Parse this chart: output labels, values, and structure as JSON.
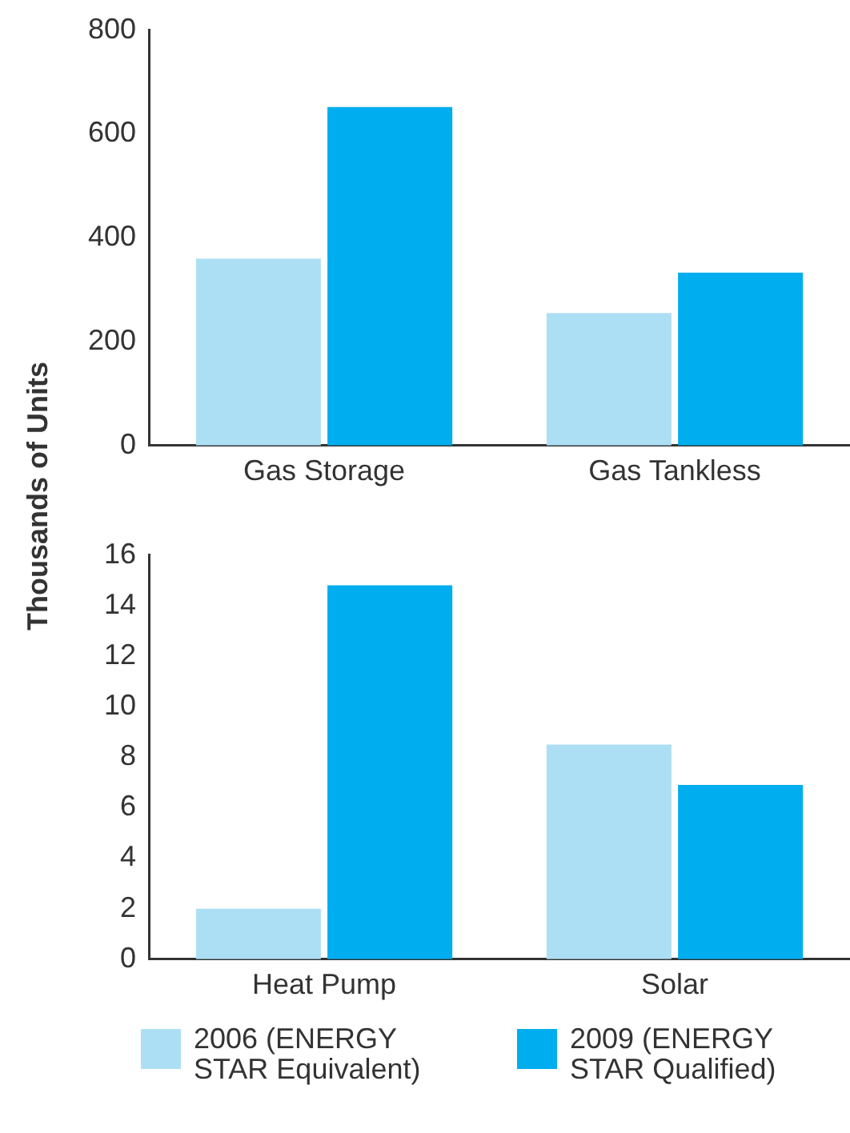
{
  "chart_data": [
    {
      "type": "bar",
      "ylabel": "Thousands of Units",
      "categories": [
        "Gas Storage",
        "Gas Tankless"
      ],
      "ylim": [
        0,
        800
      ],
      "yticks": [
        0,
        200,
        400,
        600,
        800
      ],
      "grid": false,
      "legend": false,
      "series": [
        {
          "color": "#addff4",
          "values": [
            360,
            255
          ]
        },
        {
          "color": "#00adee",
          "values": [
            652,
            333
          ]
        }
      ]
    },
    {
      "type": "bar",
      "categories": [
        "Heat Pump",
        "Solar"
      ],
      "ylim": [
        0,
        16
      ],
      "yticks": [
        0,
        2,
        4,
        6,
        8,
        10,
        12,
        14,
        16
      ],
      "grid": false,
      "legend": "bottom",
      "series": [
        {
          "name": "2006 (ENERGY STAR Equivalent)",
          "color": "#addff4",
          "values": [
            2.0,
            8.5
          ]
        },
        {
          "name": "2009 (ENERGY STAR Qualified)",
          "color": "#00adee",
          "values": [
            14.8,
            6.9
          ]
        }
      ]
    }
  ]
}
